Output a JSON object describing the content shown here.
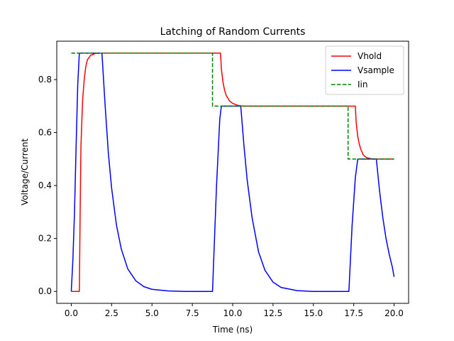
{
  "chart_data": {
    "type": "line",
    "title": "Latching of Random Currents",
    "xlabel": "Time (ns)",
    "ylabel": "Voltage/Current",
    "xlim": [
      -0.9,
      20.9
    ],
    "ylim": [
      -0.045,
      0.945
    ],
    "xticks": [
      0,
      2.5,
      5,
      7.5,
      10,
      12.5,
      15,
      17.5,
      20
    ],
    "xtick_labels": [
      "0.0",
      "2.5",
      "5.0",
      "7.5",
      "10.0",
      "12.5",
      "15.0",
      "17.5",
      "20.0"
    ],
    "yticks": [
      0,
      0.2,
      0.4,
      0.6,
      0.8
    ],
    "ytick_labels": [
      "0.0",
      "0.2",
      "0.4",
      "0.6",
      "0.8"
    ],
    "grid": false,
    "legend": "top-right",
    "series": [
      {
        "name": "Vhold",
        "color": "#ff0000",
        "dash": "solid",
        "points": [
          [
            0,
            0
          ],
          [
            0.5,
            0
          ],
          [
            0.55,
            0.3
          ],
          [
            0.6,
            0.55
          ],
          [
            0.7,
            0.72
          ],
          [
            0.8,
            0.8
          ],
          [
            0.9,
            0.85
          ],
          [
            1.0,
            0.875
          ],
          [
            1.2,
            0.892
          ],
          [
            1.5,
            0.899
          ],
          [
            1.8,
            0.9
          ],
          [
            9.25,
            0.9
          ],
          [
            9.3,
            0.84
          ],
          [
            9.4,
            0.79
          ],
          [
            9.5,
            0.76
          ],
          [
            9.6,
            0.74
          ],
          [
            9.8,
            0.72
          ],
          [
            10.0,
            0.71
          ],
          [
            10.3,
            0.703
          ],
          [
            10.6,
            0.7
          ],
          [
            17.6,
            0.7
          ],
          [
            17.65,
            0.64
          ],
          [
            17.75,
            0.585
          ],
          [
            17.85,
            0.555
          ],
          [
            17.95,
            0.535
          ],
          [
            18.1,
            0.515
          ],
          [
            18.3,
            0.505
          ],
          [
            18.6,
            0.501
          ],
          [
            19.0,
            0.5
          ],
          [
            20,
            0.5
          ]
        ]
      },
      {
        "name": "Vsample",
        "color": "#0000ff",
        "dash": "solid",
        "points": [
          [
            0,
            0
          ],
          [
            0.1,
            0.12
          ],
          [
            0.2,
            0.3
          ],
          [
            0.3,
            0.55
          ],
          [
            0.4,
            0.78
          ],
          [
            0.5,
            0.9
          ],
          [
            1.9,
            0.9
          ],
          [
            2.1,
            0.7
          ],
          [
            2.3,
            0.52
          ],
          [
            2.5,
            0.39
          ],
          [
            2.8,
            0.25
          ],
          [
            3.1,
            0.16
          ],
          [
            3.5,
            0.085
          ],
          [
            4.0,
            0.04
          ],
          [
            4.5,
            0.018
          ],
          [
            5.0,
            0.008
          ],
          [
            6.0,
            0.002
          ],
          [
            7.0,
            0.0
          ],
          [
            8.75,
            0
          ],
          [
            9.0,
            0.4
          ],
          [
            9.2,
            0.65
          ],
          [
            9.3,
            0.7
          ],
          [
            10.5,
            0.7
          ],
          [
            10.7,
            0.55
          ],
          [
            10.9,
            0.42
          ],
          [
            11.2,
            0.28
          ],
          [
            11.6,
            0.15
          ],
          [
            12.0,
            0.08
          ],
          [
            12.5,
            0.035
          ],
          [
            13.0,
            0.015
          ],
          [
            14.0,
            0.003
          ],
          [
            15.0,
            0.0
          ],
          [
            17.2,
            0
          ],
          [
            17.4,
            0.25
          ],
          [
            17.6,
            0.43
          ],
          [
            17.75,
            0.5
          ],
          [
            18.9,
            0.5
          ],
          [
            19.1,
            0.38
          ],
          [
            19.3,
            0.28
          ],
          [
            19.5,
            0.2
          ],
          [
            19.7,
            0.14
          ],
          [
            19.9,
            0.09
          ],
          [
            20.0,
            0.055
          ]
        ]
      },
      {
        "name": "Iin",
        "color": "#008000",
        "dash": "dashed",
        "points": [
          [
            0,
            0.9
          ],
          [
            8.75,
            0.9
          ],
          [
            8.75,
            0.7
          ],
          [
            17.15,
            0.7
          ],
          [
            17.15,
            0.5
          ],
          [
            20,
            0.5
          ]
        ]
      }
    ]
  }
}
